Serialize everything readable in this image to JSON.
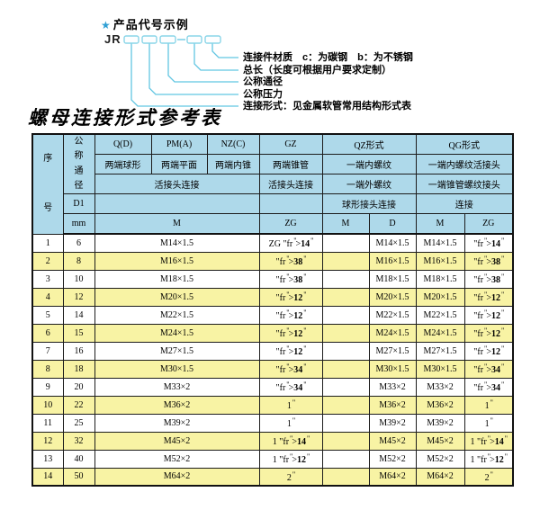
{
  "diagram": {
    "star_icon": "★",
    "heading": "产品代号示例",
    "code_prefix": "JR",
    "labels": [
      "连接件材质　c：为碳钢　b：为不锈钢",
      "总长（长度可根据用户要求定制）",
      "公称通径",
      "公称压力",
      "连接形式：见金属软管常用结构形式表"
    ]
  },
  "table": {
    "title": "螺母连接形式参考表",
    "header_rows": [
      [
        {
          "t": "序号",
          "r": 5,
          "vert": true,
          "name": "col-header-seq"
        },
        {
          "t": "公称通径",
          "r": 3,
          "vert": true,
          "name": "col-header-dn"
        },
        {
          "t": "Q(D)"
        },
        {
          "t": "PM(A)"
        },
        {
          "t": "NZ(C)"
        },
        {
          "t": "GZ"
        },
        {
          "t": "QZ形式",
          "c": 2
        },
        {
          "t": "QG形式",
          "c": 2
        }
      ],
      [
        {
          "t": "两端球形"
        },
        {
          "t": "两端平面"
        },
        {
          "t": "两端内锥"
        },
        {
          "t": "两端锥管"
        },
        {
          "t": "一端内螺纹",
          "c": 2
        },
        {
          "t": "一端内螺纹活接头",
          "c": 2
        }
      ],
      [
        {
          "t": "活接头连接",
          "c": 3
        },
        {
          "t": "活接头连接"
        },
        {
          "t": "一端外螺纹",
          "c": 2
        },
        {
          "t": "一端锥管螺纹接头",
          "c": 2
        }
      ],
      [
        {
          "t": "D1"
        },
        {
          "t": "",
          "c": 3
        },
        {
          "t": ""
        },
        {
          "t": "球形接头连接",
          "c": 2
        },
        {
          "t": "连接",
          "c": 2
        }
      ],
      [
        {
          "t": "mm"
        },
        {
          "t": "M",
          "c": 3
        },
        {
          "t": "ZG"
        },
        {
          "t": "M"
        },
        {
          "t": "D"
        },
        {
          "t": "M"
        },
        {
          "t": "ZG"
        }
      ]
    ],
    "rows": [
      [
        "1",
        "6",
        "M14×1.5",
        "ZG 1/4\"",
        "",
        "M14×1.5",
        "M14×1.5",
        "1/4\""
      ],
      [
        "2",
        "8",
        "M16×1.5",
        "3/8\"",
        "",
        "M16×1.5",
        "M16×1.5",
        "3/8\""
      ],
      [
        "3",
        "10",
        "M18×1.5",
        "3/8\"",
        "",
        "M18×1.5",
        "M18×1.5",
        "3/8\""
      ],
      [
        "4",
        "12",
        "M20×1.5",
        "1/2\"",
        "",
        "M20×1.5",
        "M20×1.5",
        "1/2\""
      ],
      [
        "5",
        "14",
        "M22×1.5",
        "1/2\"",
        "",
        "M22×1.5",
        "M22×1.5",
        "1/2\""
      ],
      [
        "6",
        "15",
        "M24×1.5",
        "1/2\"",
        "",
        "M24×1.5",
        "M24×1.5",
        "1/2\""
      ],
      [
        "7",
        "16",
        "M27×1.5",
        "1/2\"",
        "",
        "M27×1.5",
        "M27×1.5",
        "1/2\""
      ],
      [
        "8",
        "18",
        "M30×1.5",
        "3/4\"",
        "",
        "M30×1.5",
        "M30×1.5",
        "3/4\""
      ],
      [
        "9",
        "20",
        "M33×2",
        "3/4\"",
        "",
        "M33×2",
        "M33×2",
        "3/4\""
      ],
      [
        "10",
        "22",
        "M36×2",
        "1\"",
        "",
        "M36×2",
        "M36×2",
        "1\""
      ],
      [
        "11",
        "25",
        "M39×2",
        "1\"",
        "",
        "M39×2",
        "M39×2",
        "1\""
      ],
      [
        "12",
        "32",
        "M45×2",
        "1 1/4\"",
        "",
        "M45×2",
        "M45×2",
        "1 1/4\""
      ],
      [
        "13",
        "40",
        "M52×2",
        "1 1/2\"",
        "",
        "M52×2",
        "M52×2",
        "1 1/2\""
      ],
      [
        "14",
        "50",
        "M64×2",
        "2\"",
        "",
        "M64×2",
        "M64×2",
        "2\""
      ]
    ]
  },
  "colors": {
    "header_fill": "#aed9ea",
    "alt_row_fill": "#f8f3a4",
    "line_cyan": "#62c6e2",
    "box_border": "#8ad5e8",
    "star_blue": "#2e9fd4",
    "border": "#1c1c1c"
  }
}
